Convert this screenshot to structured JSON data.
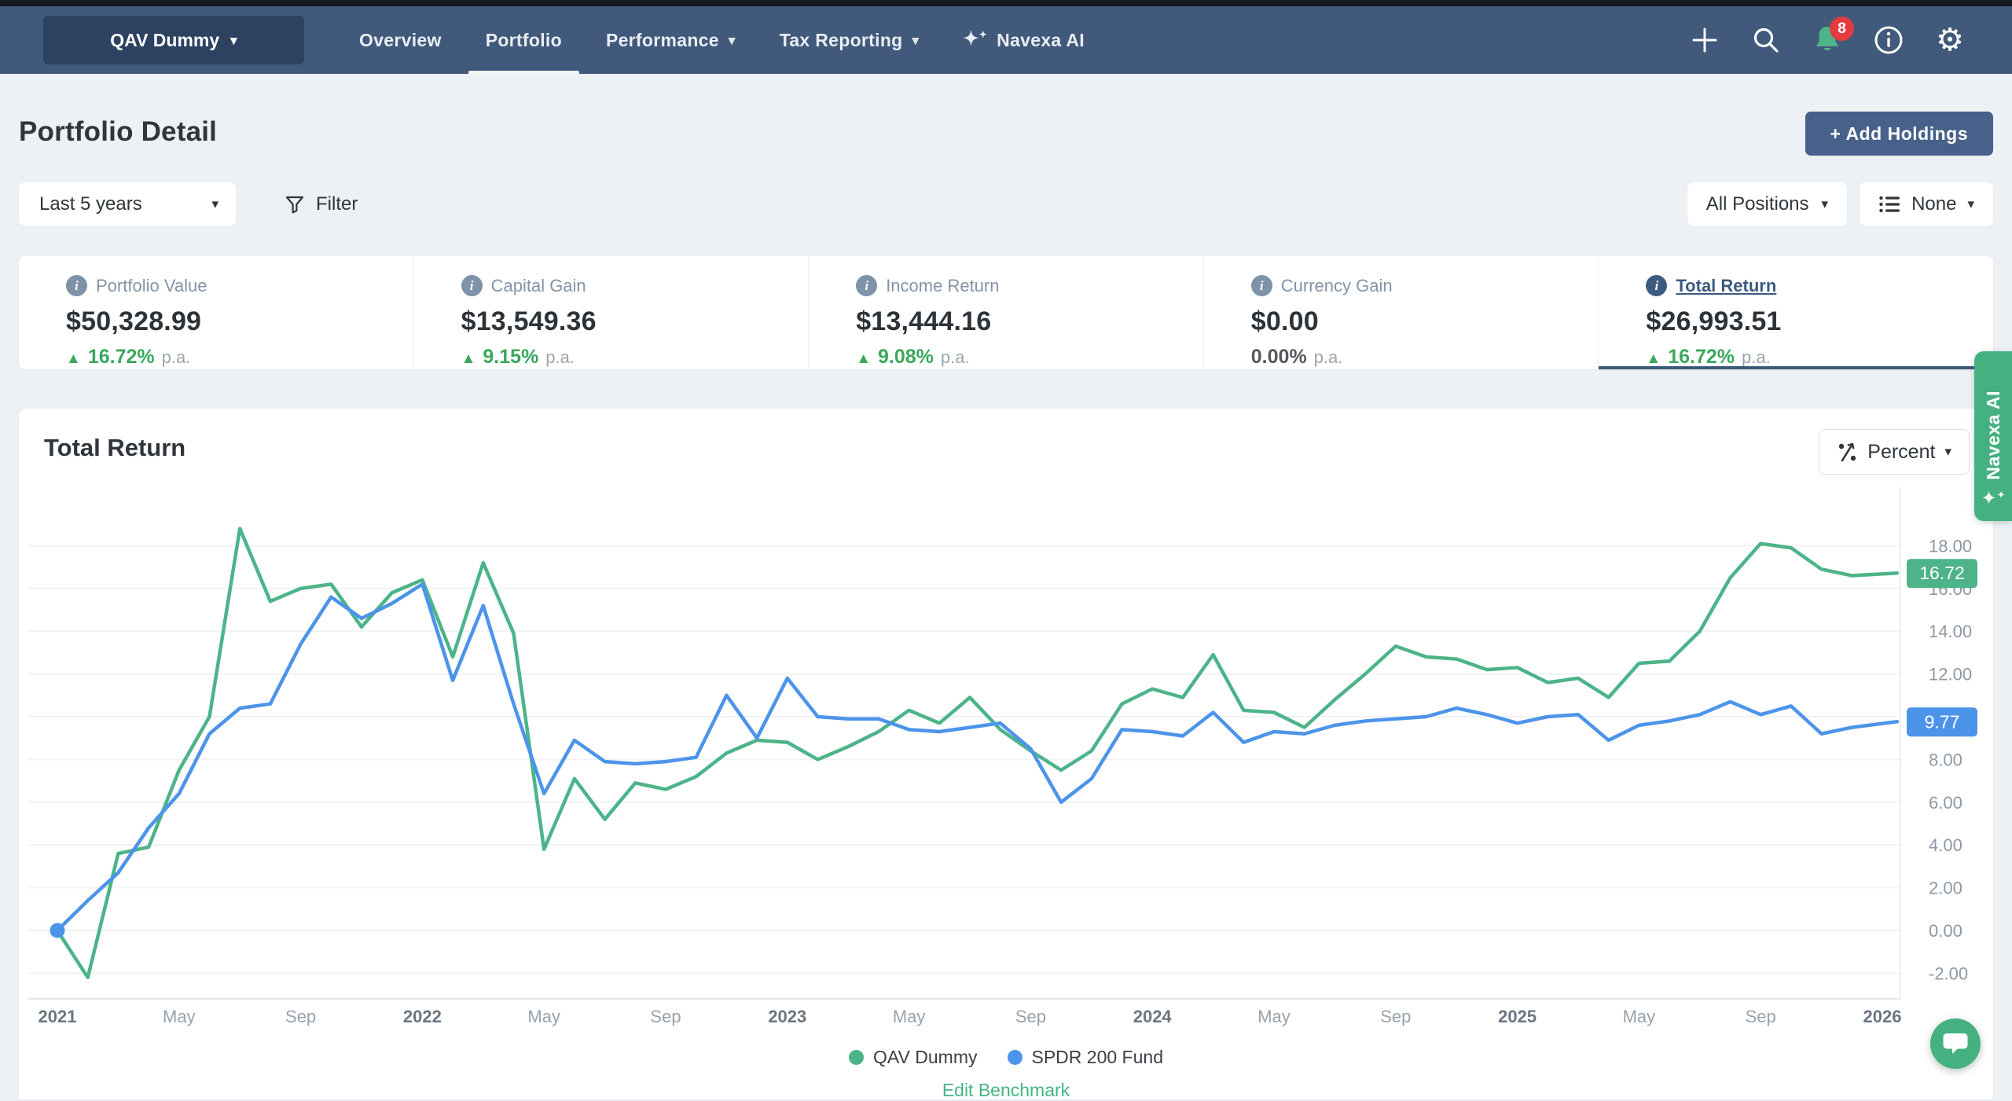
{
  "navbar": {
    "portfolio_selector": "QAV Dummy",
    "links": [
      {
        "label": "Overview",
        "active": false,
        "caret": false
      },
      {
        "label": "Portfolio",
        "active": true,
        "caret": false
      },
      {
        "label": "Performance",
        "active": false,
        "caret": true
      },
      {
        "label": "Tax Reporting",
        "active": false,
        "caret": true
      },
      {
        "label": "Navexa AI",
        "active": false,
        "caret": false,
        "sparkle": true
      }
    ],
    "notification_count": "8"
  },
  "page": {
    "title": "Portfolio Detail",
    "add_holdings_label": "+ Add Holdings"
  },
  "filters": {
    "period": "Last 5 years",
    "filter_label": "Filter",
    "positions": "All Positions",
    "group": "None"
  },
  "stats": [
    {
      "label": "Portfolio Value",
      "value": "$50,328.99",
      "change": "16.72%",
      "suffix": "p.a.",
      "dir": "up",
      "active": false
    },
    {
      "label": "Capital Gain",
      "value": "$13,549.36",
      "change": "9.15%",
      "suffix": "p.a.",
      "dir": "up",
      "active": false
    },
    {
      "label": "Income Return",
      "value": "$13,444.16",
      "change": "9.08%",
      "suffix": "p.a.",
      "dir": "up",
      "active": false
    },
    {
      "label": "Currency Gain",
      "value": "$0.00",
      "change": "0.00%",
      "suffix": "p.a.",
      "dir": "none",
      "active": false
    },
    {
      "label": "Total Return",
      "value": "$26,993.51",
      "change": "16.72%",
      "suffix": "p.a.",
      "dir": "up",
      "active": true
    }
  ],
  "chart": {
    "title": "Total Return",
    "unit_button": "Percent",
    "edit_benchmark": "Edit Benchmark"
  },
  "chart_data": {
    "type": "line",
    "title": "Total Return",
    "unit": "percent",
    "x_start": "2021-01",
    "x_end": "2026-01",
    "x_interval": "monthly",
    "ylim": [
      -3.2,
      19.8
    ],
    "grid": true,
    "legend_position": "bottom-center",
    "y_ticks": [
      {
        "value": 18,
        "label": "18.00"
      },
      {
        "value": 16,
        "label": "16.00"
      },
      {
        "value": 14,
        "label": "14.00"
      },
      {
        "value": 12,
        "label": "12.00"
      },
      {
        "value": 10,
        "label": "10.00"
      },
      {
        "value": 8,
        "label": "8.00"
      },
      {
        "value": 6,
        "label": "6.00"
      },
      {
        "value": 4,
        "label": "4.00"
      },
      {
        "value": 2,
        "label": "2.00"
      },
      {
        "value": 0,
        "label": "0.00"
      },
      {
        "value": -2,
        "label": "-2.00"
      }
    ],
    "x_ticks": [
      {
        "m": 0,
        "label": "2021",
        "bold": true
      },
      {
        "m": 4,
        "label": "May"
      },
      {
        "m": 8,
        "label": "Sep"
      },
      {
        "m": 12,
        "label": "2022",
        "bold": true
      },
      {
        "m": 16,
        "label": "May"
      },
      {
        "m": 20,
        "label": "Sep"
      },
      {
        "m": 24,
        "label": "2023",
        "bold": true
      },
      {
        "m": 28,
        "label": "May"
      },
      {
        "m": 32,
        "label": "Sep"
      },
      {
        "m": 36,
        "label": "2024",
        "bold": true
      },
      {
        "m": 40,
        "label": "May"
      },
      {
        "m": 44,
        "label": "Sep"
      },
      {
        "m": 48,
        "label": "2025",
        "bold": true
      },
      {
        "m": 52,
        "label": "May"
      },
      {
        "m": 56,
        "label": "Sep"
      },
      {
        "m": 60,
        "label": "2026",
        "bold": true
      }
    ],
    "series": [
      {
        "name": "QAV Dummy",
        "color": "#4cb488",
        "start_dot": false,
        "values": [
          0.0,
          -2.2,
          3.6,
          3.9,
          7.5,
          10.0,
          18.8,
          15.4,
          16.0,
          16.2,
          14.2,
          15.8,
          16.4,
          12.8,
          17.2,
          13.9,
          3.8,
          7.1,
          5.2,
          6.9,
          6.6,
          7.2,
          8.3,
          8.9,
          8.8,
          8.0,
          8.6,
          9.3,
          10.3,
          9.7,
          10.9,
          9.4,
          8.4,
          7.5,
          8.4,
          10.6,
          11.3,
          10.9,
          12.9,
          10.3,
          10.2,
          9.5,
          10.8,
          12.0,
          13.3,
          12.8,
          12.7,
          12.2,
          12.3,
          11.6,
          11.8,
          10.9,
          12.5,
          12.6,
          14.0,
          16.5,
          18.1,
          17.9,
          16.9,
          16.6,
          16.72
        ]
      },
      {
        "name": "SPDR 200 Fund",
        "color": "#4c94ea",
        "start_dot": true,
        "values": [
          0.0,
          1.4,
          2.7,
          4.8,
          6.4,
          9.2,
          10.4,
          10.6,
          13.4,
          15.6,
          14.6,
          15.3,
          16.2,
          11.7,
          15.2,
          10.6,
          6.4,
          8.9,
          7.9,
          7.8,
          7.9,
          8.1,
          11.0,
          9.0,
          11.8,
          10.0,
          9.9,
          9.9,
          9.4,
          9.3,
          9.5,
          9.7,
          8.5,
          6.0,
          7.1,
          9.4,
          9.3,
          9.1,
          10.2,
          8.8,
          9.3,
          9.2,
          9.6,
          9.8,
          9.9,
          10.0,
          10.4,
          10.1,
          9.7,
          10.0,
          10.1,
          8.9,
          9.6,
          9.8,
          10.1,
          10.7,
          10.1,
          10.5,
          9.2,
          9.5,
          9.77
        ]
      }
    ],
    "end_labels": [
      {
        "text": "16.72",
        "value": 16.72,
        "color": "#4db389"
      },
      {
        "text": "9.77",
        "value": 9.77,
        "color": "#4c94ea"
      }
    ]
  },
  "side_tab": {
    "label": "Navexa AI"
  },
  "colors": {
    "navbar": "#41597a",
    "accent": "#3d5a80",
    "green": "#45b181",
    "blue": "#4c94ea",
    "positive": "#3aa85d",
    "danger": "#e33b40"
  }
}
